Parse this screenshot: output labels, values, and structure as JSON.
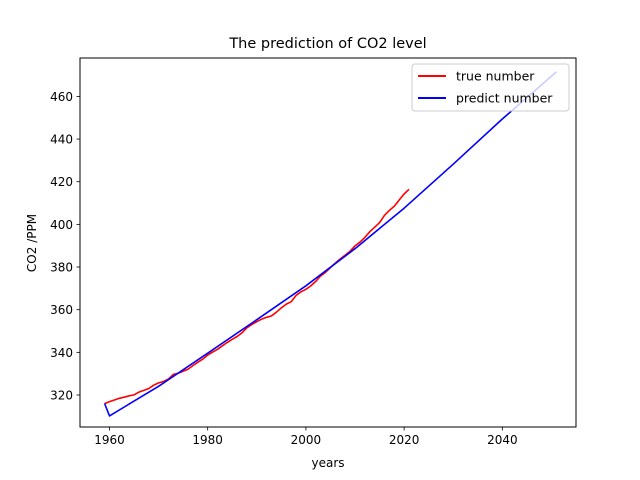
{
  "chart_data": {
    "type": "line",
    "title": "The prediction of CO2 level",
    "xlabel": "years",
    "ylabel": "CO2 /PPM",
    "xlim": [
      1954,
      2055
    ],
    "ylim": [
      305,
      478
    ],
    "xticks": [
      1960,
      1980,
      2000,
      2020,
      2040
    ],
    "yticks": [
      320,
      340,
      360,
      380,
      400,
      420,
      440,
      460
    ],
    "grid": false,
    "legend": {
      "position": "top-right"
    },
    "colors": {
      "true_number": "#ff0000",
      "predict_number": "#0000ff"
    },
    "series": [
      {
        "name": "true number",
        "color": "#ff0000",
        "x": [
          1959,
          1960,
          1961,
          1962,
          1963,
          1964,
          1965,
          1966,
          1967,
          1968,
          1969,
          1970,
          1971,
          1972,
          1973,
          1974,
          1975,
          1976,
          1977,
          1978,
          1979,
          1980,
          1981,
          1982,
          1983,
          1984,
          1985,
          1986,
          1987,
          1988,
          1989,
          1990,
          1991,
          1992,
          1993,
          1994,
          1995,
          1996,
          1997,
          1998,
          1999,
          2000,
          2001,
          2002,
          2003,
          2004,
          2005,
          2006,
          2007,
          2008,
          2009,
          2010,
          2011,
          2012,
          2013,
          2014,
          2015,
          2016,
          2017,
          2018,
          2019,
          2020,
          2021
        ],
        "y": [
          315.97,
          316.91,
          317.64,
          318.45,
          318.99,
          319.62,
          320.04,
          321.37,
          322.18,
          323.05,
          324.62,
          325.68,
          326.32,
          327.45,
          329.68,
          330.18,
          331.11,
          332.04,
          333.83,
          335.4,
          336.84,
          338.75,
          340.11,
          341.45,
          343.05,
          344.65,
          346.12,
          347.42,
          349.19,
          351.57,
          353.12,
          354.39,
          355.61,
          356.45,
          357.1,
          358.83,
          360.82,
          362.61,
          363.73,
          366.7,
          368.38,
          369.55,
          371.14,
          373.28,
          375.8,
          377.52,
          379.8,
          381.9,
          383.79,
          385.6,
          387.43,
          389.9,
          391.65,
          393.85,
          396.52,
          398.65,
          400.83,
          404.24,
          406.55,
          408.52,
          411.44,
          414.24,
          416.45
        ]
      },
      {
        "name": "predict number",
        "color": "#0000ff",
        "x": [
          1959,
          1960,
          1970,
          1980,
          1990,
          2000,
          2010,
          2020,
          2030,
          2040,
          2051
        ],
        "y": [
          316,
          310.2,
          324.1,
          339.6,
          355.3,
          371.2,
          388.6,
          407.6,
          428.2,
          449.4,
          471.5
        ]
      }
    ]
  }
}
